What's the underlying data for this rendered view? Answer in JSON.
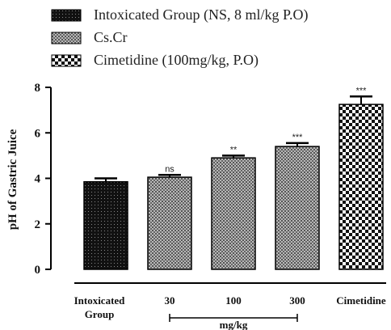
{
  "chart_data": {
    "type": "bar",
    "ylabel": "pH of Gastric Juice",
    "xlabel": "",
    "ylim": [
      0,
      8
    ],
    "yticks": [
      0,
      2,
      4,
      6,
      8
    ],
    "grid": false,
    "legend_position": "top-left",
    "categories": [
      "Intoxicated Group",
      "30",
      "100",
      "300",
      "Cimetidine"
    ],
    "values": [
      3.85,
      4.05,
      4.9,
      5.4,
      7.25
    ],
    "errors": [
      0.15,
      0.1,
      0.1,
      0.15,
      0.35
    ],
    "significance": [
      "",
      "ns",
      "**",
      "***",
      "***"
    ],
    "group_bracket": {
      "label": "mg/kg",
      "spans": [
        "30",
        "300"
      ]
    },
    "series": [
      {
        "name": "Intoxicated Group (NS, 8 ml/kg P.O)",
        "pattern": "dots-dark",
        "applies_to": [
          "Intoxicated Group"
        ]
      },
      {
        "name": "Cs.Cr",
        "pattern": "crosshatch-grey",
        "applies_to": [
          "30",
          "100",
          "300"
        ]
      },
      {
        "name": "Cimetidine (100mg/kg, P.O)",
        "pattern": "checker",
        "applies_to": [
          "Cimetidine"
        ]
      }
    ],
    "colors": {
      "dark": "#111111",
      "grey": "#8a8a8a",
      "light": "#e6e6e6"
    }
  }
}
